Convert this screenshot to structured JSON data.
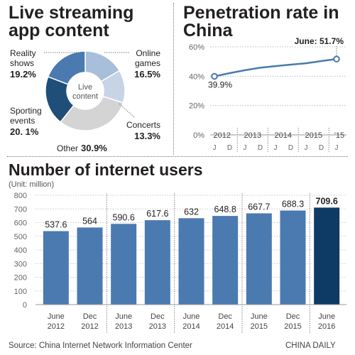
{
  "titles": {
    "pie": "Live streaming app content",
    "line": "Penetration rate in China",
    "bar": "Number of internet users"
  },
  "bar_unit": "(Unit: million)",
  "source": "Source: China Internet Network Information Center",
  "credit": "CHINA DAILY",
  "colors": {
    "dark_blue": "#1f4e79",
    "mid_blue": "#4a7ab0",
    "light_blue": "#a8bfdb",
    "pale_blue": "#c7d4e6",
    "grey": "#d4d4d4",
    "line": "#4a7ab0",
    "highlight_bar": "#0e3a66"
  },
  "chart_data": [
    {
      "type": "pie",
      "title": "Live streaming app content",
      "center_label": "Live content",
      "slices": [
        {
          "label": "Online games",
          "value": 16.5,
          "value_text": "16.5%",
          "color": "#a8bfdb"
        },
        {
          "label": "Concerts",
          "value": 13.3,
          "value_text": "13.3%",
          "color": "#c7d4e6"
        },
        {
          "label": "Other",
          "value": 30.9,
          "value_text": "30.9%",
          "color": "#d4d4d4"
        },
        {
          "label": "Sporting events",
          "value": 20.1,
          "value_text": "20. 1%",
          "color": "#1f4e79"
        },
        {
          "label": "Reality shows",
          "value": 19.2,
          "value_text": "19.2%",
          "color": "#4a7ab0"
        }
      ]
    },
    {
      "type": "line",
      "title": "Penetration rate in China",
      "y_ticks": [
        "0%",
        "20%",
        "40%",
        "60%"
      ],
      "ylim": [
        0,
        60
      ],
      "x_years": [
        "2012",
        "2013",
        "2014",
        "2015",
        "'15"
      ],
      "x_months": [
        "J",
        "D",
        "J",
        "D",
        "J",
        "D",
        "J",
        "D",
        "J"
      ],
      "points": [
        {
          "x": "June 2012",
          "y": 39.9,
          "label": "39.9%"
        },
        {
          "x": "Dec 2012",
          "y": 42.1
        },
        {
          "x": "June 2013",
          "y": 44.1
        },
        {
          "x": "Dec 2013",
          "y": 45.8
        },
        {
          "x": "June 2014",
          "y": 46.9
        },
        {
          "x": "Dec 2014",
          "y": 47.9
        },
        {
          "x": "June 2015",
          "y": 48.8
        },
        {
          "x": "Dec 2015",
          "y": 50.3
        },
        {
          "x": "June 2016",
          "y": 51.7,
          "label": "June: 51.7%"
        }
      ]
    },
    {
      "type": "bar",
      "title": "Number of internet users",
      "ylabel": "(Unit: million)",
      "ylim": [
        0,
        800
      ],
      "y_ticks": [
        "0",
        "100",
        "200",
        "300",
        "400",
        "500",
        "600",
        "700",
        "800"
      ],
      "categories": [
        {
          "month": "June",
          "year": "2012"
        },
        {
          "month": "Dec",
          "year": "2012"
        },
        {
          "month": "June",
          "year": "2013"
        },
        {
          "month": "Dec",
          "year": "2013"
        },
        {
          "month": "June",
          "year": "2014"
        },
        {
          "month": "Dec",
          "year": "2014"
        },
        {
          "month": "June",
          "year": "2015"
        },
        {
          "month": "Dec",
          "year": "2015"
        },
        {
          "month": "June",
          "year": "2016"
        }
      ],
      "values": [
        537.6,
        564,
        590.6,
        617.6,
        632,
        648.8,
        667.7,
        688.3,
        709.6
      ],
      "value_labels": [
        "537.6",
        "564",
        "590.6",
        "617.6",
        "632",
        "648.8",
        "667.7",
        "688.3",
        "709.6"
      ],
      "highlight_index": 8
    }
  ]
}
